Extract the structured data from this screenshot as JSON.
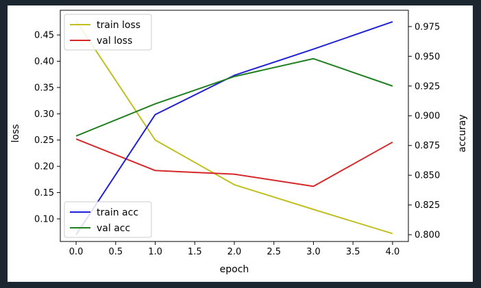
{
  "chart_data": {
    "type": "line",
    "title": "",
    "xlabel": "epoch",
    "ylabel_left": "loss",
    "ylabel_right": "accuray",
    "x": [
      0,
      1,
      2,
      3,
      4
    ],
    "xlim": [
      -0.2,
      4.2
    ],
    "xticks": [
      0.0,
      0.5,
      1.0,
      1.5,
      2.0,
      2.5,
      3.0,
      3.5,
      4.0
    ],
    "xtick_labels": [
      "0.0",
      "0.5",
      "1.0",
      "1.5",
      "2.0",
      "2.5",
      "3.0",
      "3.5",
      "4.0"
    ],
    "ylim_left": [
      0.057,
      0.497
    ],
    "yticks_left": [
      0.1,
      0.15,
      0.2,
      0.25,
      0.3,
      0.35,
      0.4,
      0.45
    ],
    "ytick_labels_left": [
      "0.10",
      "0.15",
      "0.20",
      "0.25",
      "0.30",
      "0.35",
      "0.40",
      "0.45"
    ],
    "ylim_right": [
      0.7943,
      0.9887
    ],
    "yticks_right": [
      0.8,
      0.825,
      0.85,
      0.875,
      0.9,
      0.925,
      0.95,
      0.975
    ],
    "ytick_labels_right": [
      "0.800",
      "0.825",
      "0.850",
      "0.875",
      "0.900",
      "0.925",
      "0.950",
      "0.975"
    ],
    "grid": false,
    "series": [
      {
        "name": "train loss",
        "axis": "left",
        "color": "#bfbf20",
        "values": [
          0.477,
          0.25,
          0.165,
          0.118,
          0.072
        ]
      },
      {
        "name": "val loss",
        "axis": "left",
        "color": "#d62728",
        "values": [
          0.252,
          0.192,
          0.185,
          0.162,
          0.246
        ]
      },
      {
        "name": "train acc",
        "axis": "right",
        "color": "#1f1fd6",
        "values": [
          0.8,
          0.901,
          0.934,
          0.956,
          0.979
        ]
      },
      {
        "name": "val acc",
        "axis": "right",
        "color": "#1f7f1f",
        "values": [
          0.883,
          0.91,
          0.933,
          0.948,
          0.925
        ]
      }
    ],
    "legends": [
      {
        "placement": "upper-left",
        "entries": [
          "train loss",
          "val loss"
        ]
      },
      {
        "placement": "lower-left",
        "entries": [
          "train acc",
          "val acc"
        ]
      }
    ]
  }
}
